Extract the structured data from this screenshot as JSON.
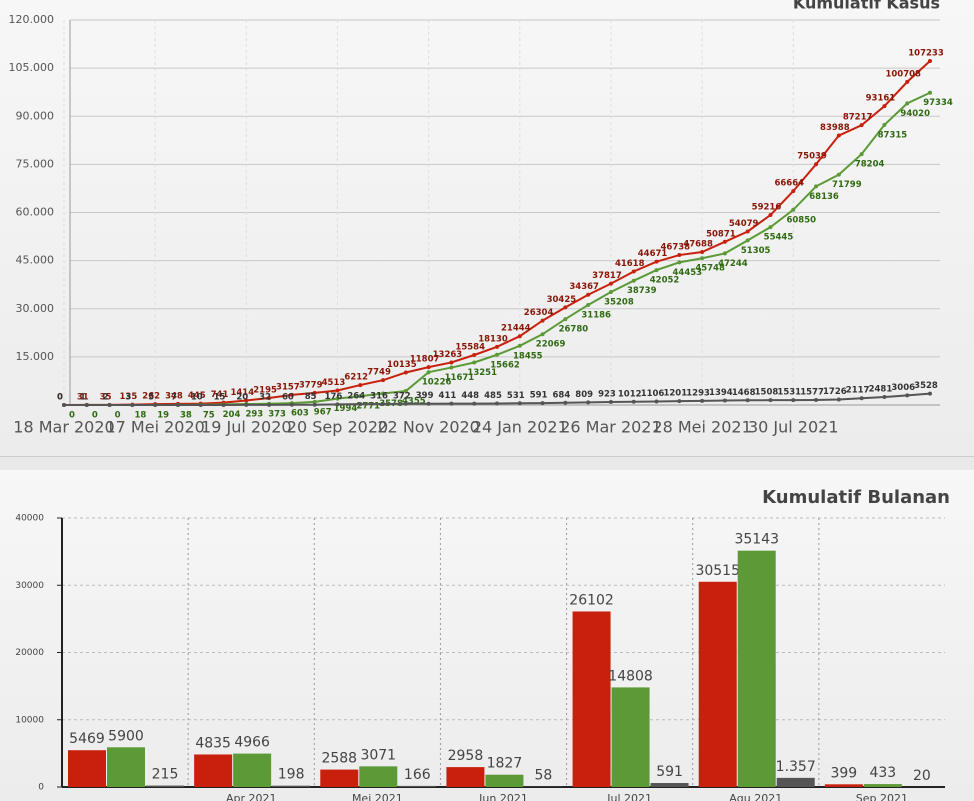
{
  "chart_data": [
    {
      "type": "line",
      "title": "Kumulatif Kasus",
      "categories": [
        "18 Mar 2020",
        null,
        null,
        null,
        "17 Mei 2020",
        null,
        null,
        null,
        "19 Jul 2020",
        null,
        null,
        null,
        "20 Sep 2020",
        null,
        null,
        null,
        "22 Nov 2020",
        null,
        null,
        null,
        "24 Jan 2021",
        null,
        null,
        null,
        "26 Mar 2021",
        null,
        null,
        null,
        "28 Mei 2021",
        null,
        null,
        null,
        "30 Jul 2021",
        null,
        null,
        null,
        null,
        null,
        null
      ],
      "series": [
        {
          "color": "#c8200c",
          "values": [
            0,
            31,
            35,
            135,
            262,
            348,
            445,
            741,
            1414,
            2195,
            3157,
            3779,
            4513,
            6212,
            7749,
            10135,
            11807,
            13263,
            15584,
            18130,
            21444,
            26304,
            30425,
            34367,
            37817,
            41618,
            44671,
            46738,
            47688,
            50871,
            54079,
            59216,
            66664,
            75039,
            83988,
            87217,
            93161,
            100708,
            107233
          ]
        },
        {
          "color": "#5b9a36",
          "values": [
            0,
            0,
            0,
            18,
            19,
            38,
            75,
            204,
            293,
            373,
            603,
            967,
            1994,
            2771,
            3578,
            4355,
            10226,
            11671,
            13251,
            15662,
            18455,
            22069,
            26780,
            31186,
            35208,
            38739,
            42052,
            44453,
            45748,
            47244,
            51305,
            55445,
            60850,
            68136,
            71799,
            78204,
            87315,
            94020,
            97334
          ]
        },
        {
          "color": "#555555",
          "values": [
            0,
            1,
            2,
            3,
            5,
            7,
            10,
            15,
            20,
            32,
            60,
            85,
            176,
            264,
            316,
            372,
            399,
            411,
            448,
            485,
            531,
            591,
            684,
            809,
            923,
            1012,
            1106,
            1201,
            1293,
            1394,
            1468,
            1508,
            1531,
            1577,
            1726,
            2117,
            2481,
            3006,
            3528
          ]
        }
      ],
      "ylim": [
        0,
        120000
      ],
      "yticks": [
        {
          "value": 15000,
          "label": "15.000"
        },
        {
          "value": 30000,
          "label": "30.000"
        },
        {
          "value": 45000,
          "label": "45.000"
        },
        {
          "value": 60000,
          "label": "60.000"
        },
        {
          "value": 75000,
          "label": "75.000"
        },
        {
          "value": 90000,
          "label": "90.000"
        },
        {
          "value": 105000,
          "label": "105.000"
        },
        {
          "value": 120000,
          "label": "120.000"
        }
      ],
      "grid": true
    },
    {
      "type": "bar",
      "title": "Kumulatif Bulanan",
      "categories": [
        null,
        "Apr 2021",
        "Mei 2021",
        "Jun 2021",
        "Jul 2021",
        "Agu 2021",
        "Sep 2021"
      ],
      "series": [
        {
          "color": "#c8200c",
          "values": [
            5469,
            4835,
            2588,
            2958,
            26102,
            30515,
            399
          ]
        },
        {
          "color": "#5b9a36",
          "values": [
            5900,
            4966,
            3071,
            1827,
            14808,
            35143,
            433
          ]
        },
        {
          "color": "#555555",
          "values": [
            215,
            198,
            166,
            58,
            591,
            1357,
            20
          ],
          "value_labels": [
            "215",
            "198",
            "166",
            "58",
            "591",
            "1.357",
            "20"
          ]
        }
      ],
      "ylim": [
        0,
        40000
      ],
      "yticks": [
        0,
        10000,
        20000,
        30000,
        40000
      ],
      "grid": true
    }
  ]
}
